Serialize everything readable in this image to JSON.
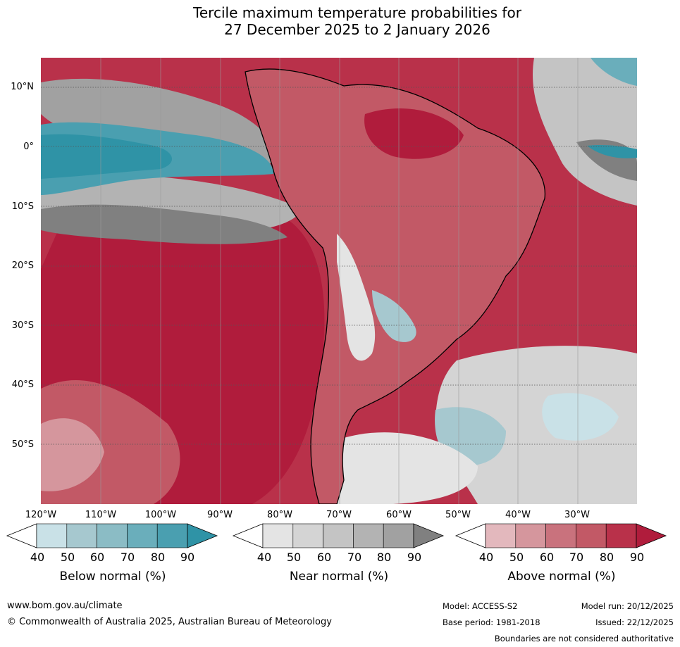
{
  "title": {
    "line1": "Tercile maximum temperature probabilities for",
    "line2": "27 December 2025 to 2 January 2026"
  },
  "axes": {
    "lat_labels": [
      "10°N",
      "0°",
      "10°S",
      "20°S",
      "30°S",
      "40°S",
      "50°S"
    ],
    "lon_labels": [
      "120°W",
      "110°W",
      "100°W",
      "90°W",
      "80°W",
      "70°W",
      "60°W",
      "50°W",
      "40°W",
      "30°W"
    ]
  },
  "colorbars": [
    {
      "label": "Below normal (%)",
      "ticks": [
        "40",
        "50",
        "60",
        "70",
        "80",
        "90"
      ],
      "colors": [
        "#ffffff",
        "#c9e1e7",
        "#a6c8cf",
        "#8bbcc5",
        "#6aaebb",
        "#4a9fb0",
        "#2f93a6"
      ]
    },
    {
      "label": "Near normal (%)",
      "ticks": [
        "40",
        "50",
        "60",
        "70",
        "80",
        "90"
      ],
      "colors": [
        "#ffffff",
        "#e4e4e4",
        "#d4d4d4",
        "#c4c4c4",
        "#b3b3b3",
        "#a1a1a1",
        "#808080"
      ]
    },
    {
      "label": "Above normal (%)",
      "ticks": [
        "40",
        "50",
        "60",
        "70",
        "80",
        "90"
      ],
      "colors": [
        "#ffffff",
        "#e3b8bd",
        "#d5969d",
        "#c9727d",
        "#c25966",
        "#b9314a",
        "#b01c3c"
      ]
    }
  ],
  "footer": {
    "url": "www.bom.gov.au/climate",
    "copyright": "© Commonwealth of Australia 2025, Australian Bureau of Meteorology",
    "model": "Model: ACCESS-S2",
    "model_run": "Model run: 20/12/2025",
    "base_period": "Base period: 1981-2018",
    "issued": "Issued: 22/12/2025",
    "disclaimer": "Boundaries are not considered authoritative"
  }
}
